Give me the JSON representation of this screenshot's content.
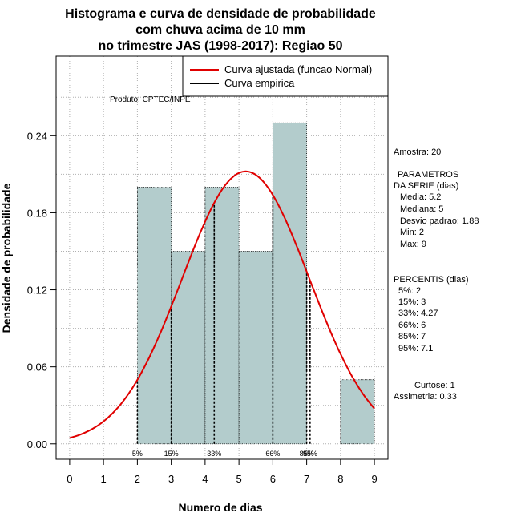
{
  "chart_data": {
    "type": "bar",
    "title": [
      "Histograma e curva de densidade de probabilidade",
      "com chuva acima de 10 mm",
      "no trimestre JAS (1998-2017): Regiao 50"
    ],
    "xlabel": "Numero de dias",
    "ylabel": "Densidade de probabilidade",
    "xlim": [
      -0.4,
      9.4
    ],
    "ylim": [
      -0.012,
      0.302
    ],
    "x_ticks": [
      0,
      1,
      2,
      3,
      4,
      5,
      6,
      7,
      8,
      9
    ],
    "y_ticks": [
      0.0,
      0.06,
      0.12,
      0.18,
      0.24
    ],
    "y_tick_labels": [
      "0.00",
      "0.06",
      "0.12",
      "0.18",
      "0.24"
    ],
    "grid": true,
    "bins": [
      {
        "x0": 2,
        "x1": 3,
        "density": 0.2
      },
      {
        "x0": 3,
        "x1": 4,
        "density": 0.15
      },
      {
        "x0": 4,
        "x1": 5,
        "density": 0.2
      },
      {
        "x0": 5,
        "x1": 6,
        "density": 0.15
      },
      {
        "x0": 6,
        "x1": 7,
        "density": 0.25
      },
      {
        "x0": 7,
        "x1": 8,
        "density": 0.0
      },
      {
        "x0": 8,
        "x1": 9,
        "density": 0.05
      }
    ],
    "bar_color": "#b3cccc",
    "fitted_curve": {
      "type": "normal",
      "mean": 5.2,
      "sd": 1.88,
      "color": "#e00000"
    },
    "empirical_color": "#000000",
    "percentile_lines": [
      {
        "label": "5%",
        "x": 2
      },
      {
        "label": "15%",
        "x": 3
      },
      {
        "label": "33%",
        "x": 4.27
      },
      {
        "label": "66%",
        "x": 6
      },
      {
        "label": "85%",
        "x": 7
      },
      {
        "label": "95%",
        "x": 7.1
      }
    ],
    "legend": {
      "position": "top-right",
      "entries": [
        {
          "label": "Curva ajustada (funcao Normal)",
          "color": "#e00000"
        },
        {
          "label": "Curva empirica",
          "color": "#000000"
        }
      ]
    },
    "annotations": {
      "product": "Produto: CPTEC/INPE",
      "stats": [
        "Amostra: 20",
        "PARAMETROS",
        "DA SERIE (dias)",
        "Media: 5.2",
        "Mediana: 5",
        "Desvio padrao: 1.88",
        "Min: 2",
        "Max: 9",
        "PERCENTIS (dias)",
        "5%: 2",
        "15%: 3",
        "33%: 4.27",
        "66%: 6",
        "85%: 7",
        "95%: 7.1",
        "Curtose: 1",
        "Assimetria: 0.33"
      ]
    }
  }
}
